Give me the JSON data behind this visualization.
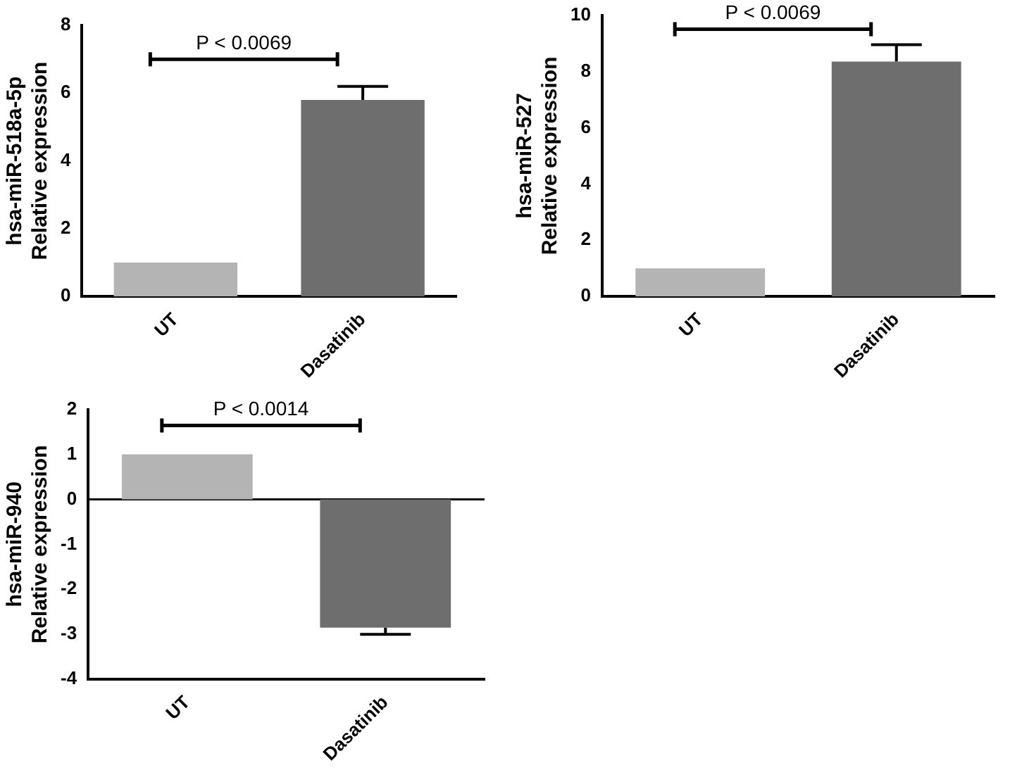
{
  "chart_data": [
    {
      "type": "bar",
      "ylabel": "hsa-miR-518a-5p\nRelative expression",
      "categories": [
        "UT",
        "Dasatinib"
      ],
      "values": [
        1,
        5.8
      ],
      "errors": [
        null,
        0.4
      ],
      "colors": [
        "#b4b4b4",
        "#6e6e6e"
      ],
      "ylim": [
        0,
        8
      ],
      "yticks": [
        0,
        2,
        4,
        6,
        8
      ],
      "annotations": [
        "P < 0.0069"
      ]
    },
    {
      "type": "bar",
      "ylabel": "hsa-miR-527\nRelative expression",
      "categories": [
        "UT",
        "Dasatinib"
      ],
      "values": [
        1,
        8.35
      ],
      "errors": [
        null,
        0.6
      ],
      "colors": [
        "#b4b4b4",
        "#6e6e6e"
      ],
      "ylim": [
        0,
        10
      ],
      "yticks": [
        0,
        2,
        4,
        6,
        8,
        10
      ],
      "annotations": [
        "P < 0.0069"
      ]
    },
    {
      "type": "bar",
      "ylabel": "hsa-miR-940\nRelative expression",
      "categories": [
        "UT",
        "Dasatinib"
      ],
      "values": [
        1,
        -2.85
      ],
      "errors": [
        null,
        0.15
      ],
      "colors": [
        "#b4b4b4",
        "#6e6e6e"
      ],
      "ylim": [
        -4,
        2
      ],
      "yticks": [
        -4,
        -3,
        -2,
        -1,
        0,
        1,
        2
      ],
      "ref_lines": [
        {
          "axis": "y",
          "value": 0
        }
      ],
      "annotations": [
        "P < 0.0014"
      ]
    }
  ]
}
